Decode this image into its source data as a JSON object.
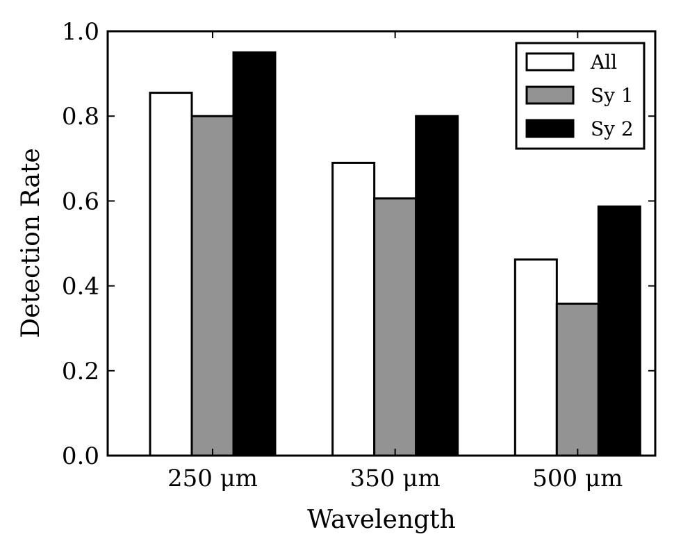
{
  "chart_data": {
    "type": "bar",
    "categories": [
      "250 μm",
      "350 μm",
      "500 μm"
    ],
    "series": [
      {
        "name": "All",
        "values": [
          0.855,
          0.69,
          0.462
        ],
        "color": "#ffffff"
      },
      {
        "name": "Sy 1",
        "values": [
          0.8,
          0.606,
          0.358
        ],
        "color": "#939393"
      },
      {
        "name": "Sy 2",
        "values": [
          0.95,
          0.8,
          0.587
        ],
        "color": "#000000"
      }
    ],
    "xlabel": "Wavelength",
    "ylabel": "Detection Rate",
    "ylim": [
      0,
      1.0
    ],
    "yticks": [
      "0.0",
      "0.2",
      "0.4",
      "0.6",
      "0.8",
      "1.0"
    ],
    "grid": false,
    "legend_position": "top-right"
  }
}
